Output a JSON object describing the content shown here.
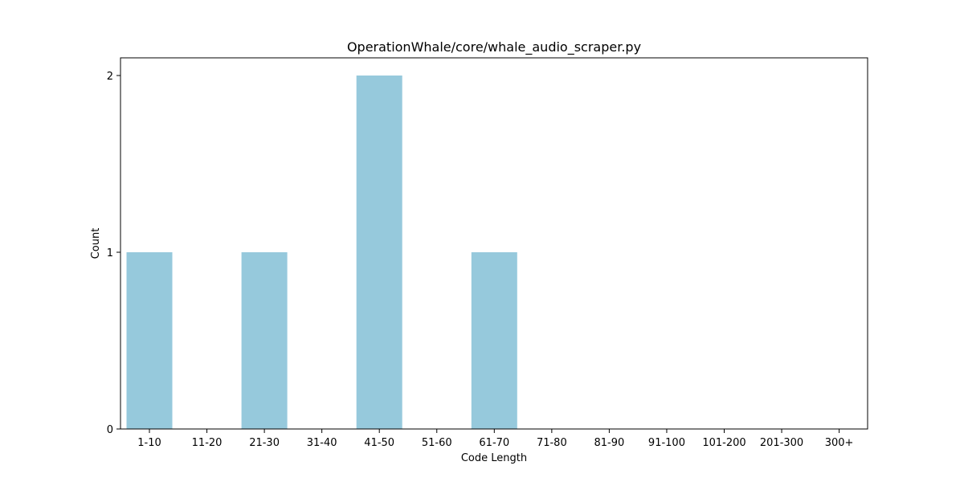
{
  "chart_data": {
    "type": "bar",
    "title": "OperationWhale/core/whale_audio_scraper.py",
    "xlabel": "Code Length",
    "ylabel": "Count",
    "categories": [
      "1-10",
      "11-20",
      "21-30",
      "31-40",
      "41-50",
      "51-60",
      "61-70",
      "71-80",
      "81-90",
      "91-100",
      "101-200",
      "201-300",
      "300+"
    ],
    "values": [
      1,
      0,
      1,
      0,
      2,
      0,
      1,
      0,
      0,
      0,
      0,
      0,
      0
    ],
    "ylim": [
      0,
      2.1
    ],
    "yticks": [
      0,
      1,
      2
    ],
    "bar_color": "#96c9dc",
    "grid": false,
    "legend": "none"
  }
}
